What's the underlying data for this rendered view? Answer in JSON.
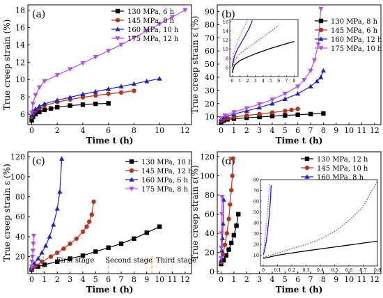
{
  "chart_data": [
    {
      "type": "line",
      "panel_label": "(a)",
      "xlabel": "Time t  (h)",
      "ylabel": "True creep strain (%)",
      "xlim": [
        -0.3,
        12.5
      ],
      "ylim": [
        4.8,
        18.6
      ],
      "xticks": [
        0,
        2,
        4,
        6,
        8,
        10,
        12
      ],
      "yticks": [
        6,
        8,
        10,
        12,
        14,
        16,
        18
      ],
      "legend_position": "top-right",
      "series": [
        {
          "name": "130 MPa, 6 h",
          "color": "#000000",
          "marker": "square",
          "x": [
            0,
            0.1,
            0.3,
            0.6,
            1,
            1.5,
            2,
            3,
            4,
            5,
            6
          ],
          "y": [
            5.3,
            5.7,
            6.0,
            6.25,
            6.5,
            6.65,
            6.8,
            7.0,
            7.1,
            7.2,
            7.25
          ]
        },
        {
          "name": "145 MPa, 8 h",
          "color": "#b8331a",
          "marker": "circle",
          "x": [
            0,
            0.1,
            0.3,
            0.6,
            1,
            2,
            3,
            4,
            5,
            6,
            7,
            8
          ],
          "y": [
            5.7,
            6.1,
            6.4,
            6.7,
            7.0,
            7.4,
            7.7,
            7.95,
            8.15,
            8.35,
            8.5,
            8.7
          ]
        },
        {
          "name": "160 MPa, 10 h",
          "color": "#2020c8",
          "marker": "triangle-up",
          "x": [
            0,
            0.1,
            0.3,
            0.6,
            1,
            2,
            3,
            4,
            5,
            6,
            7,
            8,
            9,
            10
          ],
          "y": [
            5.9,
            6.3,
            6.6,
            6.9,
            7.2,
            7.6,
            7.95,
            8.3,
            8.6,
            8.9,
            9.2,
            9.5,
            9.8,
            10.1
          ]
        },
        {
          "name": "175 MPa, 12 h",
          "color": "#b44ee0",
          "marker": "triangle-down",
          "x": [
            0,
            0.1,
            0.3,
            0.6,
            1,
            2,
            3,
            4,
            5,
            6,
            7,
            8,
            9,
            10,
            11,
            12
          ],
          "y": [
            6.2,
            7.2,
            8.2,
            9.1,
            9.8,
            10.5,
            11.2,
            11.9,
            12.6,
            13.3,
            14.0,
            14.8,
            15.6,
            16.4,
            17.2,
            18.0
          ]
        }
      ]
    },
    {
      "type": "line",
      "panel_label": "(b)",
      "xlabel": "Time t  (h)",
      "ylabel": "True creep strain ε (%)",
      "xlim": [
        -0.3,
        12.5
      ],
      "ylim": [
        4,
        95
      ],
      "xticks": [
        0,
        1,
        2,
        3,
        4,
        5,
        6,
        7,
        8,
        9,
        10,
        11,
        12
      ],
      "yticks": [
        10,
        20,
        30,
        40,
        50,
        60,
        70,
        80,
        90
      ],
      "legend_position": "top-right",
      "series": [
        {
          "name": "130 MPa, 8 h",
          "color": "#000000",
          "marker": "square",
          "x": [
            0,
            0.2,
            0.5,
            1,
            2,
            3,
            4,
            5,
            6,
            7,
            8
          ],
          "y": [
            6,
            7,
            8,
            8.5,
            9.2,
            9.8,
            10.4,
            11,
            11.5,
            12,
            12.5
          ]
        },
        {
          "name": "145 MPa, 6 h",
          "color": "#b8331a",
          "marker": "circle",
          "x": [
            0,
            0.2,
            0.5,
            1,
            2,
            3,
            4,
            5,
            5.5,
            6
          ],
          "y": [
            7,
            8,
            9,
            9.8,
            11,
            12,
            13.2,
            14.4,
            15.2,
            16
          ]
        },
        {
          "name": "160 MPa, 12 h",
          "color": "#2020c8",
          "marker": "triangle-up",
          "x": [
            0,
            0.3,
            1,
            2,
            3,
            4,
            5,
            6,
            7,
            7.5,
            7.8,
            8
          ],
          "y": [
            8,
            10,
            12,
            14.5,
            17,
            20,
            23.5,
            27.5,
            33,
            37,
            40,
            45
          ]
        },
        {
          "name": "175 MPa, 10 h",
          "color": "#b44ee0",
          "marker": "triangle-down",
          "x": [
            0,
            0.3,
            1,
            2,
            3,
            4,
            5,
            6,
            6.5,
            7,
            7.3,
            7.6,
            7.8
          ],
          "y": [
            9,
            11,
            13.5,
            16.5,
            19.5,
            23,
            27.5,
            33,
            38,
            45,
            53,
            65,
            92
          ]
        }
      ],
      "inset": {
        "xlim": [
          -0.3,
          8.5
        ],
        "ylim": [
          4,
          16.5
        ],
        "xticks": [
          0,
          1,
          2,
          3,
          4,
          5,
          6,
          7,
          8
        ],
        "yticks": [
          6,
          8,
          10,
          12,
          14,
          16
        ],
        "series": [
          {
            "name": "130 MPa, 8 h",
            "color": "#000000",
            "style": "solid",
            "x": [
              0,
              0.3,
              1,
              2,
              3,
              4,
              5,
              6,
              7,
              8
            ],
            "y": [
              4.8,
              6.5,
              7.5,
              8.3,
              9.0,
              9.6,
              10.2,
              10.7,
              11.2,
              11.7
            ]
          },
          {
            "name": "145 MPa, 6 h",
            "color": "#b8331a",
            "style": "dotted",
            "x": [
              0,
              0.3,
              1,
              2,
              3,
              4,
              5,
              6
            ],
            "y": [
              5.5,
              7.6,
              9.0,
              10.3,
              11.5,
              12.7,
              13.9,
              15.2
            ]
          },
          {
            "name": "160 MPa, 12 h",
            "color": "#2020c8",
            "style": "solid",
            "x": [
              0,
              0.3,
              0.7,
              1.2,
              1.7,
              2.2,
              2.6
            ],
            "y": [
              6.2,
              8.5,
              10.0,
              11.5,
              13.0,
              14.6,
              16.3
            ]
          },
          {
            "name": "175 MPa, 10 h",
            "color": "#b44ee0",
            "style": "dotted",
            "x": [
              0,
              0.2,
              0.5,
              0.9,
              1.3,
              1.7,
              2.0
            ],
            "y": [
              6.8,
              9.0,
              10.7,
              12.5,
              14.0,
              15.3,
              16.3
            ]
          }
        ]
      }
    },
    {
      "type": "line",
      "panel_label": "(c)",
      "xlabel": "Time t (h)",
      "ylabel": "True creep strain ε (%)",
      "xlim": [
        -0.3,
        12.5
      ],
      "ylim": [
        3,
        125
      ],
      "xticks": [
        0,
        1,
        2,
        3,
        4,
        5,
        6,
        7,
        8,
        9,
        10,
        11,
        12
      ],
      "yticks": [
        20,
        40,
        60,
        80,
        100,
        120
      ],
      "legend_position": "top-right",
      "series": [
        {
          "name": "130 MPa, 10 h",
          "color": "#000000",
          "marker": "square",
          "x": [
            0,
            0.5,
            1,
            2,
            3,
            4,
            5,
            6,
            7,
            8,
            9,
            10
          ],
          "y": [
            7,
            10,
            12,
            15,
            18,
            21,
            25,
            29,
            33,
            38,
            44,
            50
          ]
        },
        {
          "name": "145 MPa, 12 h",
          "color": "#b8331a",
          "marker": "circle",
          "x": [
            0,
            0.3,
            0.8,
            1.5,
            2,
            2.5,
            3,
            3.5,
            4,
            4.3,
            4.5,
            4.7,
            4.85
          ],
          "y": [
            8,
            11,
            15,
            20,
            24,
            28,
            33,
            38,
            45,
            50,
            55,
            62,
            75
          ]
        },
        {
          "name": "160 MPa, 6 h",
          "color": "#2020c8",
          "marker": "triangle-up",
          "x": [
            0,
            0.2,
            0.5,
            0.8,
            1.1,
            1.4,
            1.7,
            2.0,
            2.2,
            2.35
          ],
          "y": [
            9,
            13,
            18,
            24,
            31,
            40,
            52,
            68,
            85,
            118
          ]
        },
        {
          "name": "175 MPa, 8 h",
          "color": "#b44ee0",
          "marker": "triangle-down",
          "x": [
            0,
            0.03,
            0.06,
            0.1,
            0.13,
            0.16
          ],
          "y": [
            10,
            15,
            20,
            26,
            33,
            41
          ]
        }
      ],
      "annotations": [
        {
          "text": "First stage",
          "x": 3.4,
          "y": 17
        },
        {
          "text": "Second stage",
          "x": 7.6,
          "y": 17
        },
        {
          "text": "Third stage",
          "x": 11.3,
          "y": 17
        }
      ],
      "stage_dividers_x": [
        0.9,
        6.0,
        9.4
      ]
    },
    {
      "type": "line",
      "panel_label": "(d)",
      "xlabel": "Time t (h)",
      "ylabel": "True creep strain ε(%)",
      "xlim": [
        -0.3,
        12.5
      ],
      "ylim": [
        -2,
        125
      ],
      "xticks": [
        0,
        1,
        2,
        3,
        4,
        5,
        6,
        7,
        8,
        9,
        10,
        11,
        12
      ],
      "yticks": [
        0,
        20,
        40,
        60,
        80,
        100,
        120
      ],
      "legend_position": "top-right",
      "series": [
        {
          "name": "130 MPa, 12 h",
          "color": "#000000",
          "marker": "square",
          "x": [
            0,
            0.2,
            0.4,
            0.6,
            0.8,
            1.0,
            1.2,
            1.35
          ],
          "y": [
            8,
            12,
            17,
            23,
            30,
            38,
            48,
            60
          ]
        },
        {
          "name": "145 MPa, 10 h",
          "color": "#b8331a",
          "marker": "circle",
          "x": [
            0,
            0.15,
            0.3,
            0.45,
            0.6,
            0.7,
            0.8,
            0.88,
            0.93
          ],
          "y": [
            10,
            18,
            28,
            40,
            55,
            70,
            85,
            100,
            118
          ]
        },
        {
          "name": "160 MPa, 8 h",
          "color": "#2020c8",
          "marker": "triangle-up",
          "x": [
            0,
            0.05,
            0.1,
            0.15,
            0.2
          ],
          "y": [
            12,
            22,
            35,
            50,
            75
          ]
        },
        {
          "name": "175 MPa, 6 h",
          "color": "#b44ee0",
          "marker": "triangle-down",
          "x": [
            0,
            0.02,
            0.04,
            0.06,
            0.08
          ],
          "y": [
            14,
            25,
            40,
            60,
            78
          ]
        }
      ],
      "inset": {
        "xlim": [
          -0.02,
          0.8
        ],
        "ylim": [
          0,
          80
        ],
        "xticks": [
          0,
          0.1,
          0.2,
          0.3,
          0.4,
          0.5,
          0.6,
          0.7,
          0.8
        ],
        "yticks": [
          10,
          20,
          30,
          40,
          50,
          60,
          70,
          80
        ],
        "series": [
          {
            "name": "130 MPa, 12 h",
            "color": "#000000",
            "style": "solid",
            "x": [
              0,
              0.05,
              0.1,
              0.2,
              0.3,
              0.4,
              0.5,
              0.6,
              0.7,
              0.8
            ],
            "y": [
              7,
              8.5,
              10,
              12,
              14,
              15.8,
              17.6,
              19.4,
              21.2,
              23
            ]
          },
          {
            "name": "145 MPa, 10 h",
            "color": "#b8331a",
            "style": "dotted",
            "x": [
              0,
              0.05,
              0.1,
              0.2,
              0.3,
              0.4,
              0.5,
              0.6,
              0.7,
              0.8
            ],
            "y": [
              8,
              10,
              12,
              16,
              20,
              25,
              32,
              42,
              55,
              79
            ]
          },
          {
            "name": "160 MPa, 8 h",
            "color": "#2020c8",
            "style": "solid",
            "x": [
              0,
              0.01,
              0.02,
              0.03,
              0.04,
              0.05,
              0.055
            ],
            "y": [
              10,
              15,
              22,
              32,
              45,
              60,
              75
            ]
          },
          {
            "name": "175 MPa, 6 h",
            "color": "#b44ee0",
            "style": "dotted",
            "x": [
              0,
              0.008,
              0.016,
              0.024,
              0.032,
              0.04,
              0.045
            ],
            "y": [
              12,
              20,
              30,
              42,
              55,
              68,
              76
            ]
          }
        ]
      }
    }
  ]
}
